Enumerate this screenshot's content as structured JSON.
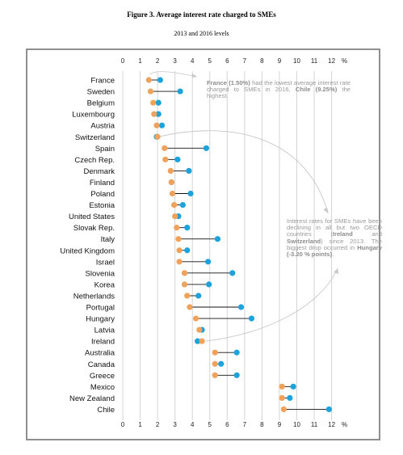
{
  "title": "Figure 3. Average interest rate charged to SMEs",
  "subtitle": "2013 and 2016 levels",
  "annotations": {
    "france": {
      "parts": [
        {
          "text": "France (1.50%)",
          "bold": true
        },
        {
          "text": " had the lowest average interest rate charged to SMEs in 2016, ",
          "bold": false
        },
        {
          "text": "Chile (9.25%)",
          "bold": true
        },
        {
          "text": " the highest.",
          "bold": false
        }
      ]
    },
    "declining": {
      "parts": [
        {
          "text": "Interest rates for SMEs have been declining in all but two OECD countries (",
          "bold": false
        },
        {
          "text": "Ireland",
          "bold": true
        },
        {
          "text": " and ",
          "bold": false
        },
        {
          "text": "Switzerland",
          "bold": true
        },
        {
          "text": ") since 2013. The biggest drop occurred in ",
          "bold": false
        },
        {
          "text": "Hungary (-3.20 % points)",
          "bold": true
        },
        {
          "text": ".",
          "bold": false
        }
      ]
    }
  },
  "colors": {
    "y2016": "#f0a25b",
    "y2013": "#1ca3dc",
    "connector": "#111111",
    "grid": "#d4d4d4",
    "annotation": "#9a9a9a"
  },
  "chart_data": {
    "type": "dot",
    "title": "Figure 3. Average interest rate charged to SMEs",
    "subtitle": "2013 and 2016 levels",
    "x_unit": "%",
    "xlim": [
      0,
      12
    ],
    "x_ticks": [
      0,
      1,
      2,
      3,
      4,
      5,
      6,
      7,
      8,
      9,
      10,
      11,
      12
    ],
    "x_tick_labels": [
      "0",
      "1",
      "2",
      "3",
      "4",
      "5",
      "6",
      "7",
      "8",
      "9",
      "10",
      "11",
      "12"
    ],
    "categories": [
      "France",
      "Sweden",
      "Belgium",
      "Luxembourg",
      "Austria",
      "Switzerland",
      "Spain",
      "Czech Rep.",
      "Denmark",
      "Finland",
      "Poland",
      "Estonia",
      "United States",
      "Slovak Rep.",
      "Italy",
      "United Kingdom",
      "Israel",
      "Slovenia",
      "Korea",
      "Netherlands",
      "Portugal",
      "Hungary",
      "Latvia",
      "Ireland",
      "Australia",
      "Canada",
      "Greece",
      "Mexico",
      "New Zealand",
      "Chile"
    ],
    "series": [
      {
        "key": "y2016",
        "values": [
          1.5,
          1.6,
          1.75,
          1.8,
          1.95,
          2.0,
          2.4,
          2.45,
          2.75,
          2.8,
          2.85,
          2.95,
          3.0,
          3.1,
          3.2,
          3.25,
          3.25,
          3.55,
          3.55,
          3.7,
          3.85,
          4.2,
          4.4,
          4.55,
          5.3,
          5.3,
          5.3,
          9.15,
          9.15,
          9.25
        ]
      },
      {
        "key": "y2013",
        "values": [
          2.15,
          3.3,
          2.05,
          2.05,
          2.25,
          1.95,
          4.8,
          3.15,
          3.8,
          2.8,
          3.9,
          3.45,
          3.2,
          3.7,
          5.45,
          3.7,
          4.9,
          6.3,
          4.95,
          4.35,
          6.8,
          7.4,
          4.55,
          4.3,
          6.55,
          5.65,
          6.55,
          9.8,
          9.6,
          11.85
        ]
      }
    ]
  }
}
